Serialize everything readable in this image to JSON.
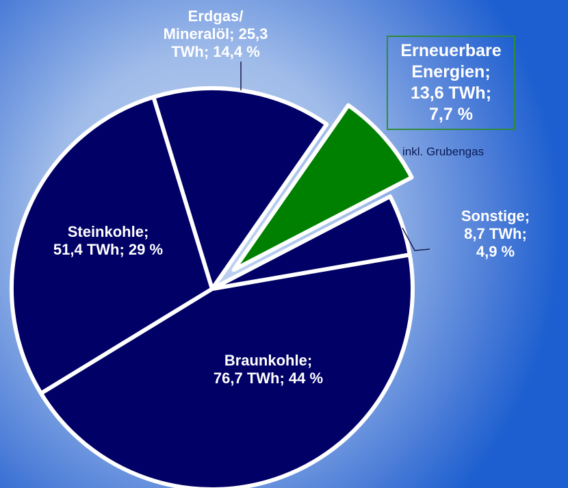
{
  "chart_data": {
    "type": "pie",
    "categories": [
      "Braunkohle",
      "Steinkohle",
      "Erdgas/Mineralöl",
      "Erneuerbare Energien",
      "Sonstige"
    ],
    "values": [
      44,
      29,
      14.4,
      7.7,
      4.9
    ],
    "value_labels": [
      "Braunkohle;\n76,7 TWh; 44 %",
      "Steinkohle;\n51,4 TWh; 29 %",
      "Erdgas/\nMineralöl; 25,3\nTWh; 14,4 %",
      "Erneuerbare\nEnergien;\n13,6 TWh;\n7,7 %",
      "Sonstige;\n8,7 TWh; 4,9 %"
    ],
    "colors": [
      "#000066",
      "#000066",
      "#000066",
      "#008000",
      "#000066"
    ],
    "explode": [
      false,
      false,
      false,
      true,
      false
    ],
    "annotations": [
      "inkl. Grubengas"
    ]
  }
}
